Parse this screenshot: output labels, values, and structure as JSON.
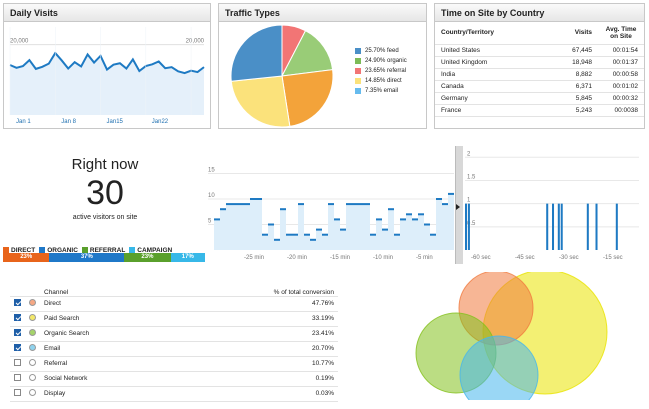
{
  "daily_visits": {
    "title": "Daily Visits",
    "y_labels": [
      "20,000",
      "10,000"
    ],
    "x_labels": [
      "Jan 1",
      "Jan 8",
      "Jan15",
      "Jan22"
    ],
    "values": [
      14200,
      13400,
      13900,
      15600,
      13100,
      13700,
      14600,
      17600,
      15500,
      13200,
      15000,
      13800,
      17200,
      14900,
      16800,
      12900,
      14300,
      14700,
      13200,
      15800,
      12500,
      13900,
      14400,
      15200,
      13300,
      13600,
      12400,
      11900,
      12600,
      12200,
      13600
    ],
    "ylim": [
      0,
      25000
    ]
  },
  "traffic_types": {
    "title": "Traffic Types",
    "slices": [
      {
        "label": "25.70% feed",
        "value": 25.7,
        "color": "#4a8fc7"
      },
      {
        "label": "24.90% organic",
        "value": 24.9,
        "color": "#fbe27b"
      },
      {
        "label": "23.65% referral",
        "value": 23.65,
        "color": "#f3a33a"
      },
      {
        "label": "14.85% direct",
        "value": 14.85,
        "color": "#99cc77"
      },
      {
        "label": "7.35% email",
        "value": 7.35,
        "color": "#f27575"
      }
    ],
    "legend": [
      {
        "label": "25.70% feed",
        "color": "#4a8fc7"
      },
      {
        "label": "24.90% organic",
        "color": "#7dbb57"
      },
      {
        "label": "23.65% referral",
        "color": "#f27575"
      },
      {
        "label": "14.85% direct",
        "color": "#fbe27b"
      },
      {
        "label": "7.35% email",
        "color": "#66bbee"
      }
    ]
  },
  "time_on_site": {
    "title": "Time on Site by Country",
    "headers": [
      "Country/Territory",
      "Visits",
      "Avg. Time on Site"
    ],
    "rows": [
      [
        "United States",
        "67,445",
        "00:01:54"
      ],
      [
        "United Kingdom",
        "18,948",
        "00:01:37"
      ],
      [
        "India",
        "8,882",
        "00:00:58"
      ],
      [
        "Canada",
        "6,371",
        "00:01:02"
      ],
      [
        "Germany",
        "5,845",
        "00:00:32"
      ],
      [
        "France",
        "5,243",
        "00:0038"
      ]
    ]
  },
  "right_now": {
    "title": "Right now",
    "count": "30",
    "subtitle": "active visitors on site",
    "tags": [
      {
        "label": "DIRECT",
        "color": "#e8641b"
      },
      {
        "label": "ORGANIC",
        "color": "#1f78c8"
      },
      {
        "label": "REFERRAL",
        "color": "#5aa02c"
      },
      {
        "label": "CAMPAIGN",
        "color": "#37b8e8"
      }
    ],
    "bar": [
      {
        "label": "23%",
        "value": 23,
        "color": "#e8641b"
      },
      {
        "label": "37%",
        "value": 37,
        "color": "#1f78c8"
      },
      {
        "label": "23%",
        "value": 23,
        "color": "#5aa02c"
      },
      {
        "label": "17%",
        "value": 17,
        "color": "#37b8e8"
      }
    ]
  },
  "realtime_minutes": {
    "y_labels": [
      "15",
      "10",
      "5"
    ],
    "x_labels": [
      "-25 min",
      "-20 min",
      "-15 min",
      "-10 min",
      "-5 min"
    ],
    "values": [
      6,
      8,
      9,
      9,
      9,
      9,
      10,
      10,
      3,
      5,
      2,
      8,
      3,
      3,
      9,
      3,
      2,
      4,
      3,
      9,
      6,
      4,
      9,
      9,
      9,
      9,
      3,
      6,
      4,
      8,
      3,
      6,
      7,
      6,
      7,
      5,
      3,
      10,
      9,
      11
    ],
    "ylim": [
      0,
      20
    ]
  },
  "realtime_seconds": {
    "y_labels": [
      "2",
      "1.5",
      "1",
      "0.5"
    ],
    "x_labels": [
      "-60 sec",
      "-45 sec",
      "-30 sec",
      "-15 sec"
    ],
    "bars": [
      1,
      1,
      0,
      0,
      0,
      0,
      0,
      0,
      0,
      0,
      0,
      0,
      0,
      0,
      0,
      0,
      0,
      0,
      0,
      0,
      0,
      0,
      0,
      0,
      0,
      0,
      0,
      0,
      1,
      0,
      1,
      0,
      1,
      1,
      0,
      0,
      0,
      0,
      0,
      0,
      0,
      0,
      1,
      0,
      0,
      1,
      0,
      0,
      0,
      0,
      0,
      0,
      1,
      0,
      0,
      0,
      0,
      0,
      0,
      0
    ]
  },
  "conversions": {
    "headers": [
      "Channel",
      "% of total conversion"
    ],
    "rows": [
      {
        "checked": true,
        "color": "#f6a884",
        "channel": "Direct",
        "pct": "47.76%"
      },
      {
        "checked": true,
        "color": "#f3e86a",
        "channel": "Paid Search",
        "pct": "33.19%"
      },
      {
        "checked": true,
        "color": "#a5d36a",
        "channel": "Organic Search",
        "pct": "23.41%"
      },
      {
        "checked": true,
        "color": "#8fd3ee",
        "channel": "Email",
        "pct": "20.70%"
      },
      {
        "checked": false,
        "color": "#ffffff",
        "channel": "Referral",
        "pct": "10.77%"
      },
      {
        "checked": false,
        "color": "#ffffff",
        "channel": "Social Network",
        "pct": "0.19%"
      },
      {
        "checked": false,
        "color": "#ffffff",
        "channel": "Display",
        "pct": "0.03%"
      }
    ]
  },
  "venn": {
    "circles": [
      {
        "name": "Paid Search",
        "color": "#e9e400"
      },
      {
        "name": "Direct",
        "color": "#f07a3e"
      },
      {
        "name": "Organic Search",
        "color": "#84c11d"
      },
      {
        "name": "Email",
        "color": "#47b7ec"
      }
    ]
  }
}
